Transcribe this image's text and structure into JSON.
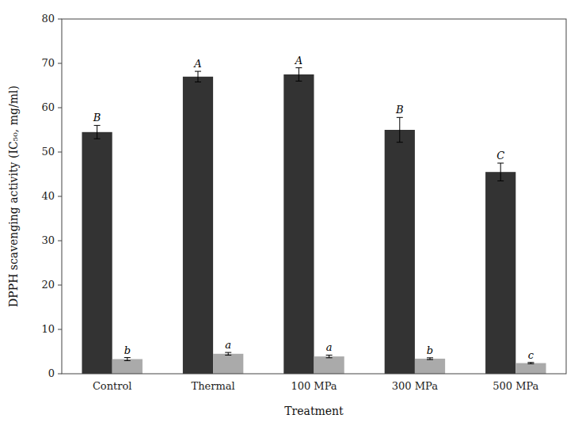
{
  "chart_data": {
    "type": "bar",
    "xlabel": "Treatment",
    "ylabel": "DPPH scavenging activity (IC₅₀, mg/ml)",
    "categories": [
      "Control",
      "Thermal",
      "100 MPa",
      "300 MPa",
      "500 MPa"
    ],
    "series": [
      {
        "color": "#333333",
        "values": [
          54.5,
          67.0,
          67.5,
          55.0,
          45.5
        ],
        "errors": [
          1.5,
          1.2,
          1.5,
          2.8,
          2.0
        ],
        "labels": [
          "B",
          "A",
          "A",
          "B",
          "C"
        ]
      },
      {
        "color": "#aaaaaa",
        "values": [
          3.3,
          4.5,
          3.9,
          3.4,
          2.4
        ],
        "errors": [
          0.35,
          0.3,
          0.3,
          0.2,
          0.15
        ],
        "labels": [
          "b",
          "a",
          "a",
          "b",
          "c"
        ]
      }
    ],
    "ylim": [
      0,
      80
    ],
    "yticks": [
      0,
      10,
      20,
      30,
      40,
      50,
      60,
      70,
      80
    ],
    "grid": false
  }
}
